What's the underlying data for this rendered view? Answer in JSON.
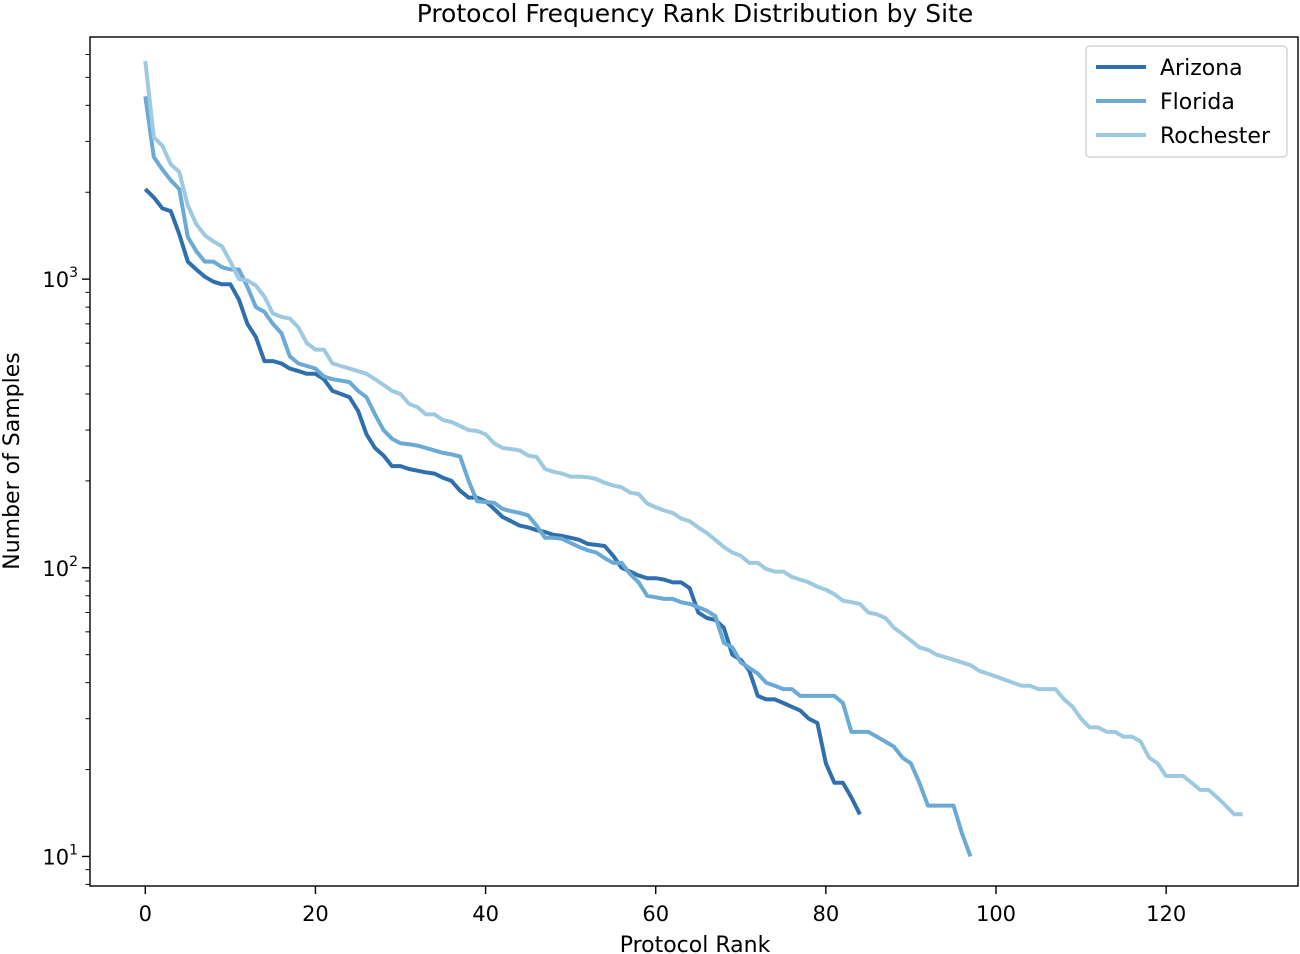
{
  "chart_data": {
    "type": "line",
    "title": "Protocol Frequency Rank Distribution by Site",
    "xlabel": "Protocol Rank",
    "ylabel": "Number of Samples",
    "xlim": [
      -6.5,
      135.5
    ],
    "ylim": [
      7.9,
      6900
    ],
    "yscale": "log",
    "xticks": [
      0,
      20,
      40,
      60,
      80,
      100,
      120
    ],
    "xtick_labels": [
      "0",
      "20",
      "40",
      "60",
      "80",
      "100",
      "120"
    ],
    "yticks": [
      10,
      100,
      1000
    ],
    "ytick_labels": [
      {
        "base": "10",
        "exp": "1"
      },
      {
        "base": "10",
        "exp": "2"
      },
      {
        "base": "10",
        "exp": "3"
      }
    ],
    "grid": false,
    "legend_position": "top-right",
    "series": [
      {
        "name": "Arizona",
        "color": "#2f6fad",
        "points": [
          [
            0,
            2050
          ],
          [
            1,
            1920
          ],
          [
            2,
            1760
          ],
          [
            3,
            1720
          ],
          [
            4,
            1430
          ],
          [
            5,
            1150
          ],
          [
            6,
            1080
          ],
          [
            7,
            1020
          ],
          [
            8,
            980
          ],
          [
            9,
            960
          ],
          [
            10,
            960
          ],
          [
            11,
            850
          ],
          [
            12,
            700
          ],
          [
            13,
            630
          ],
          [
            14,
            520
          ],
          [
            15,
            520
          ],
          [
            16,
            510
          ],
          [
            17,
            490
          ],
          [
            18,
            480
          ],
          [
            19,
            470
          ],
          [
            20,
            470
          ],
          [
            21,
            450
          ],
          [
            22,
            410
          ],
          [
            23,
            400
          ],
          [
            24,
            390
          ],
          [
            25,
            350
          ],
          [
            26,
            290
          ],
          [
            27,
            260
          ],
          [
            28,
            245
          ],
          [
            29,
            225
          ],
          [
            30,
            225
          ],
          [
            31,
            220
          ],
          [
            32,
            217
          ],
          [
            33,
            214
          ],
          [
            34,
            212
          ],
          [
            35,
            205
          ],
          [
            36,
            200
          ],
          [
            37,
            185
          ],
          [
            38,
            175
          ],
          [
            39,
            175
          ],
          [
            40,
            170
          ],
          [
            41,
            160
          ],
          [
            42,
            150
          ],
          [
            43,
            145
          ],
          [
            44,
            140
          ],
          [
            45,
            138
          ],
          [
            46,
            135
          ],
          [
            47,
            133
          ],
          [
            48,
            130
          ],
          [
            49,
            129
          ],
          [
            50,
            127
          ],
          [
            51,
            125
          ],
          [
            52,
            121
          ],
          [
            53,
            120
          ],
          [
            54,
            119
          ],
          [
            55,
            110
          ],
          [
            56,
            100
          ],
          [
            57,
            97
          ],
          [
            58,
            94
          ],
          [
            59,
            92
          ],
          [
            60,
            92
          ],
          [
            61,
            91
          ],
          [
            62,
            89
          ],
          [
            63,
            89
          ],
          [
            64,
            85
          ],
          [
            65,
            70
          ],
          [
            66,
            67
          ],
          [
            67,
            66
          ],
          [
            68,
            62
          ],
          [
            69,
            50
          ],
          [
            70,
            48
          ],
          [
            71,
            44
          ],
          [
            72,
            36
          ],
          [
            73,
            35
          ],
          [
            74,
            35
          ],
          [
            75,
            34
          ],
          [
            76,
            33
          ],
          [
            77,
            32
          ],
          [
            78,
            30
          ],
          [
            79,
            29
          ],
          [
            80,
            21
          ],
          [
            81,
            18
          ],
          [
            82,
            18
          ],
          [
            83,
            16
          ],
          [
            84,
            14
          ]
        ]
      },
      {
        "name": "Florida",
        "color": "#6aaad5",
        "points": [
          [
            0,
            4300
          ],
          [
            1,
            2650
          ],
          [
            2,
            2400
          ],
          [
            3,
            2200
          ],
          [
            4,
            2050
          ],
          [
            5,
            1400
          ],
          [
            6,
            1250
          ],
          [
            7,
            1150
          ],
          [
            8,
            1150
          ],
          [
            9,
            1100
          ],
          [
            10,
            1080
          ],
          [
            11,
            1080
          ],
          [
            12,
            940
          ],
          [
            13,
            800
          ],
          [
            14,
            770
          ],
          [
            15,
            700
          ],
          [
            16,
            650
          ],
          [
            17,
            540
          ],
          [
            18,
            510
          ],
          [
            19,
            500
          ],
          [
            20,
            490
          ],
          [
            21,
            460
          ],
          [
            22,
            450
          ],
          [
            23,
            445
          ],
          [
            24,
            440
          ],
          [
            25,
            410
          ],
          [
            26,
            390
          ],
          [
            27,
            340
          ],
          [
            28,
            300
          ],
          [
            29,
            280
          ],
          [
            30,
            270
          ],
          [
            31,
            268
          ],
          [
            32,
            265
          ],
          [
            33,
            260
          ],
          [
            34,
            255
          ],
          [
            35,
            250
          ],
          [
            36,
            247
          ],
          [
            37,
            243
          ],
          [
            38,
            200
          ],
          [
            39,
            170
          ],
          [
            40,
            169
          ],
          [
            41,
            168
          ],
          [
            42,
            160
          ],
          [
            43,
            157
          ],
          [
            44,
            155
          ],
          [
            45,
            152
          ],
          [
            46,
            140
          ],
          [
            47,
            127
          ],
          [
            48,
            127
          ],
          [
            49,
            126
          ],
          [
            50,
            122
          ],
          [
            51,
            118
          ],
          [
            52,
            115
          ],
          [
            53,
            113
          ],
          [
            54,
            108
          ],
          [
            55,
            104
          ],
          [
            56,
            104
          ],
          [
            57,
            95
          ],
          [
            58,
            89
          ],
          [
            59,
            80
          ],
          [
            60,
            79
          ],
          [
            61,
            78
          ],
          [
            62,
            78
          ],
          [
            63,
            76
          ],
          [
            64,
            75
          ],
          [
            65,
            73
          ],
          [
            66,
            71
          ],
          [
            67,
            68
          ],
          [
            68,
            55
          ],
          [
            69,
            53
          ],
          [
            70,
            47
          ],
          [
            71,
            45
          ],
          [
            72,
            43
          ],
          [
            73,
            40
          ],
          [
            74,
            39
          ],
          [
            75,
            38
          ],
          [
            76,
            38
          ],
          [
            77,
            36
          ],
          [
            78,
            36
          ],
          [
            79,
            36
          ],
          [
            80,
            36
          ],
          [
            81,
            36
          ],
          [
            82,
            34
          ],
          [
            83,
            27
          ],
          [
            84,
            27
          ],
          [
            85,
            27
          ],
          [
            86,
            26
          ],
          [
            87,
            25
          ],
          [
            88,
            24
          ],
          [
            89,
            22
          ],
          [
            90,
            21
          ],
          [
            91,
            18
          ],
          [
            92,
            15
          ],
          [
            93,
            15
          ],
          [
            94,
            15
          ],
          [
            95,
            15
          ],
          [
            96,
            12
          ],
          [
            97,
            10
          ]
        ]
      },
      {
        "name": "Rochester",
        "color": "#9ecae1",
        "points": [
          [
            0,
            5700
          ],
          [
            1,
            3100
          ],
          [
            2,
            2900
          ],
          [
            3,
            2500
          ],
          [
            4,
            2350
          ],
          [
            5,
            1800
          ],
          [
            6,
            1550
          ],
          [
            7,
            1420
          ],
          [
            8,
            1350
          ],
          [
            9,
            1300
          ],
          [
            10,
            1150
          ],
          [
            11,
            1000
          ],
          [
            12,
            990
          ],
          [
            13,
            950
          ],
          [
            14,
            870
          ],
          [
            15,
            760
          ],
          [
            16,
            740
          ],
          [
            17,
            730
          ],
          [
            18,
            680
          ],
          [
            19,
            600
          ],
          [
            20,
            570
          ],
          [
            21,
            570
          ],
          [
            22,
            510
          ],
          [
            23,
            500
          ],
          [
            24,
            490
          ],
          [
            25,
            480
          ],
          [
            26,
            470
          ],
          [
            27,
            450
          ],
          [
            28,
            430
          ],
          [
            29,
            410
          ],
          [
            30,
            400
          ],
          [
            31,
            370
          ],
          [
            32,
            360
          ],
          [
            33,
            340
          ],
          [
            34,
            340
          ],
          [
            35,
            325
          ],
          [
            36,
            320
          ],
          [
            37,
            310
          ],
          [
            38,
            300
          ],
          [
            39,
            298
          ],
          [
            40,
            290
          ],
          [
            41,
            270
          ],
          [
            42,
            260
          ],
          [
            43,
            258
          ],
          [
            44,
            255
          ],
          [
            45,
            245
          ],
          [
            46,
            242
          ],
          [
            47,
            220
          ],
          [
            48,
            215
          ],
          [
            49,
            212
          ],
          [
            50,
            207
          ],
          [
            51,
            207
          ],
          [
            52,
            206
          ],
          [
            53,
            203
          ],
          [
            54,
            197
          ],
          [
            55,
            193
          ],
          [
            56,
            190
          ],
          [
            57,
            182
          ],
          [
            58,
            180
          ],
          [
            59,
            167
          ],
          [
            60,
            162
          ],
          [
            61,
            158
          ],
          [
            62,
            155
          ],
          [
            63,
            148
          ],
          [
            64,
            145
          ],
          [
            65,
            138
          ],
          [
            66,
            132
          ],
          [
            67,
            125
          ],
          [
            68,
            118
          ],
          [
            69,
            113
          ],
          [
            70,
            110
          ],
          [
            71,
            104
          ],
          [
            72,
            104
          ],
          [
            73,
            99
          ],
          [
            74,
            97
          ],
          [
            75,
            97
          ],
          [
            76,
            93
          ],
          [
            77,
            91
          ],
          [
            78,
            89
          ],
          [
            79,
            86
          ],
          [
            80,
            84
          ],
          [
            81,
            81
          ],
          [
            82,
            77
          ],
          [
            83,
            76
          ],
          [
            84,
            75
          ],
          [
            85,
            70
          ],
          [
            86,
            69
          ],
          [
            87,
            67
          ],
          [
            88,
            62
          ],
          [
            89,
            59
          ],
          [
            90,
            56
          ],
          [
            91,
            53
          ],
          [
            92,
            52
          ],
          [
            93,
            50
          ],
          [
            94,
            49
          ],
          [
            95,
            48
          ],
          [
            96,
            47
          ],
          [
            97,
            46
          ],
          [
            98,
            44
          ],
          [
            99,
            43
          ],
          [
            100,
            42
          ],
          [
            101,
            41
          ],
          [
            102,
            40
          ],
          [
            103,
            39
          ],
          [
            104,
            39
          ],
          [
            105,
            38
          ],
          [
            106,
            38
          ],
          [
            107,
            38
          ],
          [
            108,
            35
          ],
          [
            109,
            33
          ],
          [
            110,
            30
          ],
          [
            111,
            28
          ],
          [
            112,
            28
          ],
          [
            113,
            27
          ],
          [
            114,
            27
          ],
          [
            115,
            26
          ],
          [
            116,
            26
          ],
          [
            117,
            25
          ],
          [
            118,
            22
          ],
          [
            119,
            21
          ],
          [
            120,
            19
          ],
          [
            121,
            19
          ],
          [
            122,
            19
          ],
          [
            123,
            18
          ],
          [
            124,
            17
          ],
          [
            125,
            17
          ],
          [
            126,
            16
          ],
          [
            127,
            15
          ],
          [
            128,
            14
          ],
          [
            129,
            14
          ]
        ]
      }
    ]
  }
}
